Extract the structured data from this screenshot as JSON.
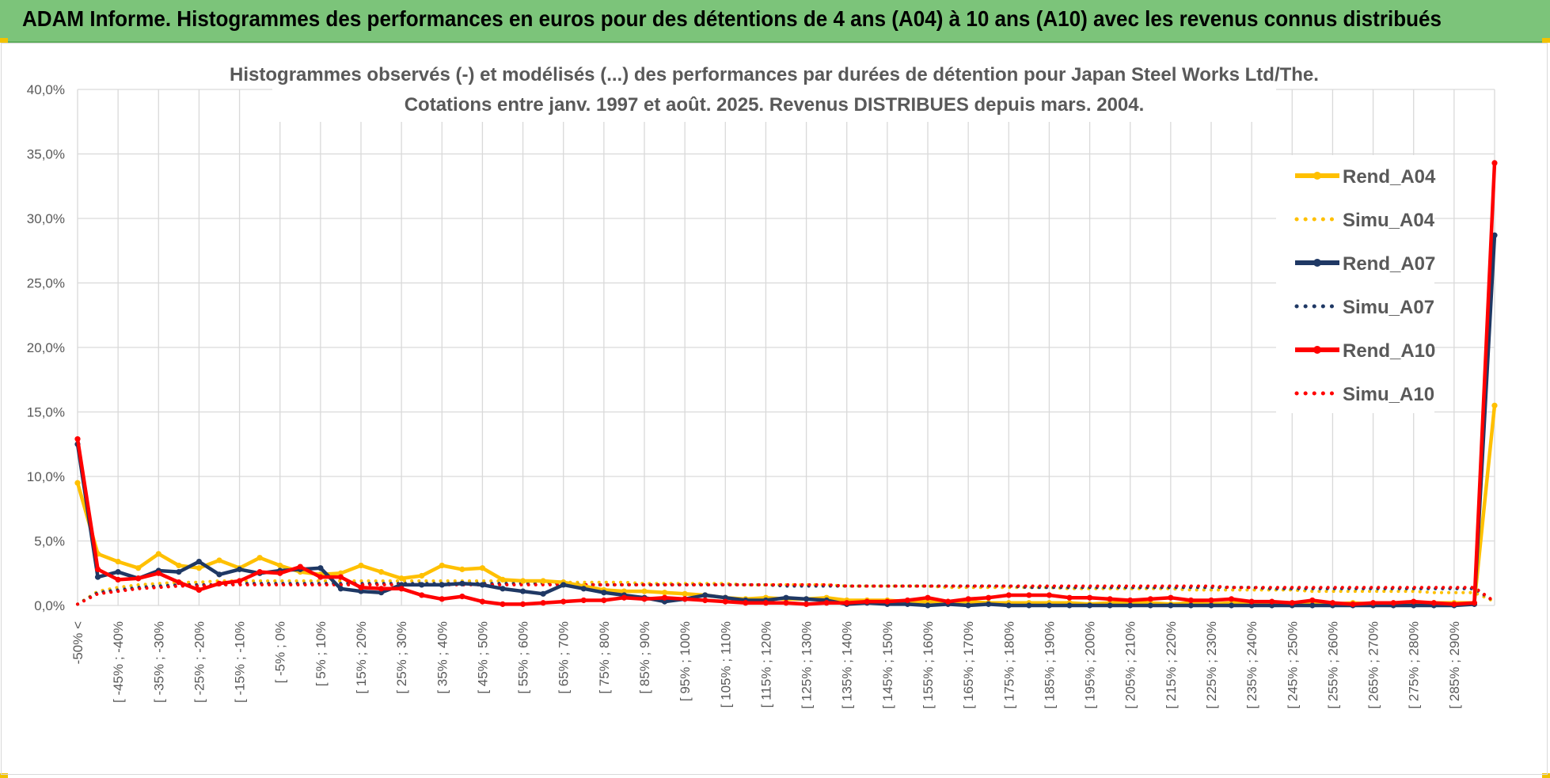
{
  "header": {
    "title": "ADAM Informe. Histogrammes des performances en euros pour des détentions de 4 ans (A04) à 10 ans (A10) avec les revenus connus distribués"
  },
  "colors": {
    "header_bg": "#7cc47a",
    "A04": "#ffc000",
    "A07": "#1f3864",
    "A10": "#ff0000",
    "grid": "#d9d9d9",
    "text": "#595959"
  },
  "chart_data": {
    "type": "line",
    "title": [
      "Histogrammes observés (-) et modélisés (...) des performances par durées de détention pour Japan Steel Works Ltd/The.",
      "Cotations entre janv. 1997 et août. 2025. Revenus DISTRIBUES depuis mars. 2004."
    ],
    "ylim": [
      0,
      40
    ],
    "yticks": [
      "0,0%",
      "5,0%",
      "10,0%",
      "15,0%",
      "20,0%",
      "25,0%",
      "30,0%",
      "35,0%",
      "40,0%"
    ],
    "grid": true,
    "legend_position": "right",
    "x_tick_labels": [
      "-50% <",
      "[ -45% ; -40%",
      "[ -35% ; -30%",
      "[ -25% ; -20%",
      "[ -15% ; -10%",
      "[ -5% ; 0%",
      "[ 5% ; 10%",
      "[ 15% ; 20%",
      "[ 25% ; 30%",
      "[ 35% ; 40%",
      "[ 45% ; 50%",
      "[ 55% ; 60%",
      "[ 65% ; 70%",
      "[ 75% ; 80%",
      "[ 85% ; 90%",
      "[ 95% ; 100%",
      "[ 105% ; 110%",
      "[ 115% ; 120%",
      "[ 125% ; 130%",
      "[ 135% ; 140%",
      "[ 145% ; 150%",
      "[ 155% ; 160%",
      "[ 165% ; 170%",
      "[ 175% ; 180%",
      "[ 185% ; 190%",
      "[ 195% ; 200%",
      "[ 205% ; 210%",
      "[ 215% ; 220%",
      "[ 225% ; 230%",
      "[ 235% ; 240%",
      "[ 245% ; 250%",
      "[ 255% ; 260%",
      "[ 265% ; 270%",
      "[ 275% ; 280%",
      "[ 285% ; 290%"
    ],
    "n_points": 71,
    "series": [
      {
        "name": "Rend_A04",
        "style": "solid",
        "color": "#ffc000",
        "values": [
          9.5,
          4.0,
          3.4,
          2.9,
          4.0,
          3.1,
          2.9,
          3.5,
          2.9,
          3.7,
          3.1,
          2.6,
          2.4,
          2.5,
          3.1,
          2.6,
          2.1,
          2.3,
          3.1,
          2.8,
          2.9,
          2.0,
          1.9,
          1.9,
          1.8,
          1.5,
          1.2,
          1.1,
          1.1,
          1.0,
          0.9,
          0.8,
          0.6,
          0.5,
          0.6,
          0.5,
          0.5,
          0.6,
          0.4,
          0.4,
          0.4,
          0.3,
          0.3,
          0.3,
          0.3,
          0.2,
          0.2,
          0.2,
          0.2,
          0.2,
          0.1,
          0.2,
          0.2,
          0.2,
          0.1,
          0.2,
          0.1,
          0.2,
          0.2,
          0.2,
          0.1,
          0.2,
          0.1,
          0.2,
          0.1,
          0.1,
          0.1,
          0.2,
          0.2,
          0.2,
          15.5
        ]
      },
      {
        "name": "Simu_A04",
        "style": "dotted",
        "color": "#ffc000",
        "values": [
          0.1,
          1.1,
          1.4,
          1.6,
          1.7,
          1.8,
          1.8,
          1.9,
          1.9,
          1.9,
          1.9,
          1.9,
          1.9,
          1.9,
          1.9,
          1.9,
          1.9,
          1.9,
          1.9,
          1.9,
          1.9,
          1.9,
          1.9,
          1.8,
          1.8,
          1.8,
          1.8,
          1.8,
          1.7,
          1.7,
          1.7,
          1.7,
          1.7,
          1.6,
          1.6,
          1.6,
          1.6,
          1.6,
          1.5,
          1.5,
          1.5,
          1.5,
          1.5,
          1.4,
          1.4,
          1.4,
          1.4,
          1.4,
          1.4,
          1.3,
          1.3,
          1.3,
          1.3,
          1.3,
          1.3,
          1.2,
          1.2,
          1.2,
          1.2,
          1.2,
          1.2,
          1.1,
          1.1,
          1.1,
          1.1,
          1.1,
          1.1,
          1.0,
          1.0,
          1.0,
          0.3
        ]
      },
      {
        "name": "Rend_A07",
        "style": "solid",
        "color": "#1f3864",
        "values": [
          12.5,
          2.2,
          2.6,
          2.1,
          2.7,
          2.6,
          3.4,
          2.4,
          2.8,
          2.5,
          2.7,
          2.8,
          2.9,
          1.3,
          1.1,
          1.0,
          1.6,
          1.6,
          1.6,
          1.7,
          1.6,
          1.3,
          1.1,
          0.9,
          1.6,
          1.3,
          1.0,
          0.8,
          0.6,
          0.3,
          0.5,
          0.8,
          0.6,
          0.4,
          0.4,
          0.6,
          0.5,
          0.4,
          0.1,
          0.2,
          0.1,
          0.1,
          0.0,
          0.1,
          0.0,
          0.1,
          0.0,
          0.0,
          0.0,
          0.0,
          0.0,
          0.0,
          0.0,
          0.0,
          0.0,
          0.0,
          0.0,
          0.0,
          0.0,
          0.0,
          0.0,
          0.0,
          0.0,
          0.0,
          0.0,
          0.0,
          0.0,
          0.0,
          0.0,
          0.1,
          28.7
        ]
      },
      {
        "name": "Simu_A07",
        "style": "dotted",
        "color": "#1f3864",
        "values": [
          0.1,
          1.0,
          1.2,
          1.4,
          1.5,
          1.6,
          1.6,
          1.6,
          1.7,
          1.7,
          1.7,
          1.7,
          1.7,
          1.7,
          1.7,
          1.7,
          1.7,
          1.7,
          1.7,
          1.7,
          1.7,
          1.7,
          1.7,
          1.7,
          1.7,
          1.6,
          1.6,
          1.6,
          1.6,
          1.6,
          1.6,
          1.6,
          1.6,
          1.6,
          1.6,
          1.5,
          1.5,
          1.5,
          1.5,
          1.5,
          1.5,
          1.5,
          1.5,
          1.5,
          1.5,
          1.5,
          1.5,
          1.4,
          1.4,
          1.4,
          1.4,
          1.4,
          1.4,
          1.4,
          1.4,
          1.4,
          1.4,
          1.4,
          1.4,
          1.3,
          1.3,
          1.3,
          1.3,
          1.3,
          1.3,
          1.3,
          1.3,
          1.3,
          1.3,
          1.3,
          0.3
        ]
      },
      {
        "name": "Rend_A10",
        "style": "solid",
        "color": "#ff0000",
        "values": [
          12.9,
          2.8,
          2.0,
          2.1,
          2.5,
          1.8,
          1.2,
          1.7,
          1.9,
          2.6,
          2.5,
          3.0,
          2.2,
          2.2,
          1.4,
          1.3,
          1.3,
          0.8,
          0.5,
          0.7,
          0.3,
          0.1,
          0.1,
          0.2,
          0.3,
          0.4,
          0.4,
          0.6,
          0.5,
          0.6,
          0.5,
          0.4,
          0.3,
          0.2,
          0.2,
          0.2,
          0.1,
          0.2,
          0.2,
          0.3,
          0.3,
          0.4,
          0.6,
          0.3,
          0.5,
          0.6,
          0.8,
          0.8,
          0.8,
          0.6,
          0.6,
          0.5,
          0.4,
          0.5,
          0.6,
          0.4,
          0.4,
          0.5,
          0.3,
          0.3,
          0.2,
          0.4,
          0.2,
          0.1,
          0.2,
          0.2,
          0.3,
          0.2,
          0.1,
          0.2,
          34.3
        ]
      },
      {
        "name": "Simu_A10",
        "style": "dotted",
        "color": "#ff0000",
        "values": [
          0.1,
          0.9,
          1.1,
          1.3,
          1.4,
          1.5,
          1.5,
          1.6,
          1.6,
          1.6,
          1.6,
          1.6,
          1.6,
          1.6,
          1.6,
          1.6,
          1.6,
          1.6,
          1.6,
          1.6,
          1.6,
          1.6,
          1.6,
          1.6,
          1.6,
          1.6,
          1.6,
          1.6,
          1.6,
          1.6,
          1.6,
          1.6,
          1.6,
          1.6,
          1.6,
          1.6,
          1.6,
          1.6,
          1.5,
          1.5,
          1.5,
          1.5,
          1.5,
          1.5,
          1.5,
          1.5,
          1.5,
          1.5,
          1.5,
          1.5,
          1.5,
          1.5,
          1.5,
          1.5,
          1.5,
          1.5,
          1.5,
          1.4,
          1.4,
          1.4,
          1.4,
          1.4,
          1.4,
          1.4,
          1.4,
          1.4,
          1.4,
          1.4,
          1.4,
          1.4,
          0.3
        ]
      }
    ]
  }
}
